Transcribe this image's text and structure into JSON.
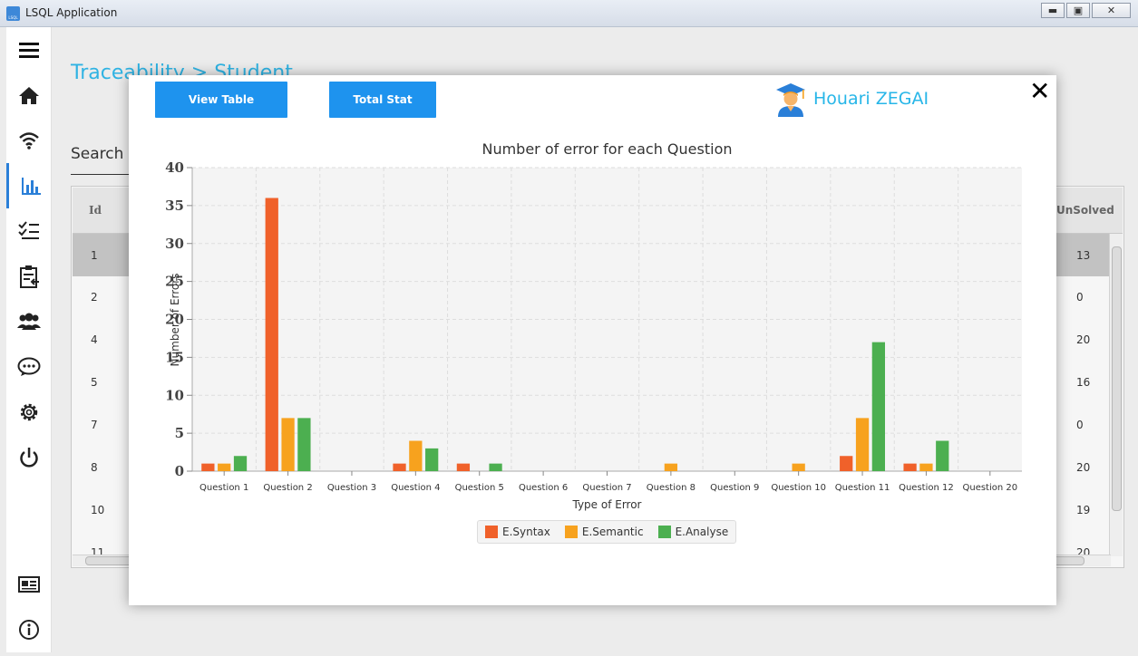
{
  "window": {
    "title": "LSQL Application",
    "logo_text": "LSQL",
    "minimize": "▬",
    "restore": "▣",
    "close": "✕"
  },
  "sidebar": {
    "items": [
      {
        "name": "menu",
        "icon": "hamburger-icon"
      },
      {
        "name": "home",
        "icon": "home-icon"
      },
      {
        "name": "network",
        "icon": "wifi-icon"
      },
      {
        "name": "statistics",
        "icon": "bar-chart-icon",
        "active": true
      },
      {
        "name": "checklist",
        "icon": "checklist-icon"
      },
      {
        "name": "assignments",
        "icon": "clipboard-icon"
      },
      {
        "name": "groups",
        "icon": "users-icon"
      },
      {
        "name": "messages",
        "icon": "chat-icon"
      },
      {
        "name": "settings",
        "icon": "gear-icon"
      },
      {
        "name": "power",
        "icon": "power-icon"
      }
    ],
    "bottom_items": [
      {
        "name": "dashboard",
        "icon": "id-card-icon"
      },
      {
        "name": "about",
        "icon": "info-icon"
      }
    ]
  },
  "page": {
    "breadcrumb": "Traceability > Student",
    "search_label": "Search",
    "table": {
      "columns": {
        "id": "Id",
        "unsolved": "UnSolved"
      },
      "rows": [
        {
          "id": "1",
          "unsolved": "13",
          "selected": true
        },
        {
          "id": "2",
          "unsolved": "0"
        },
        {
          "id": "4",
          "unsolved": "20"
        },
        {
          "id": "5",
          "unsolved": "16"
        },
        {
          "id": "7",
          "unsolved": "0"
        },
        {
          "id": "8",
          "unsolved": "20"
        },
        {
          "id": "10",
          "unsolved": "19"
        },
        {
          "id": "11",
          "unsolved": "20"
        }
      ]
    }
  },
  "modal": {
    "view_table_label": "View Table",
    "total_stat_label": "Total Stat",
    "user_name": "Houari ZEGAI",
    "close_glyph": "✕"
  },
  "chart_data": {
    "type": "bar",
    "title": "Number of error for each Question",
    "xlabel": "Type of Error",
    "ylabel": "Number of Errors",
    "ylim": [
      0,
      40
    ],
    "yticks": [
      0,
      5,
      10,
      15,
      20,
      25,
      30,
      35,
      40
    ],
    "categories": [
      "Question 1",
      "Question 2",
      "Question 3",
      "Question 4",
      "Question 5",
      "Question 6",
      "Question 7",
      "Question 8",
      "Question 9",
      "Question 10",
      "Question 11",
      "Question 12",
      "Question 20"
    ],
    "series": [
      {
        "name": "E.Syntax",
        "color": "#f0612a",
        "values": [
          1,
          36,
          0,
          1,
          1,
          0,
          0,
          0,
          0,
          0,
          2,
          1,
          0
        ]
      },
      {
        "name": "E.Semantic",
        "color": "#f7a21e",
        "values": [
          1,
          7,
          0,
          4,
          0,
          0,
          0,
          1,
          0,
          1,
          7,
          1,
          0
        ]
      },
      {
        "name": "E.Analyse",
        "color": "#4caf50",
        "values": [
          2,
          7,
          0,
          3,
          1,
          0,
          0,
          0,
          0,
          0,
          17,
          4,
          0
        ]
      }
    ],
    "grid": true,
    "legend_position": "bottom"
  }
}
